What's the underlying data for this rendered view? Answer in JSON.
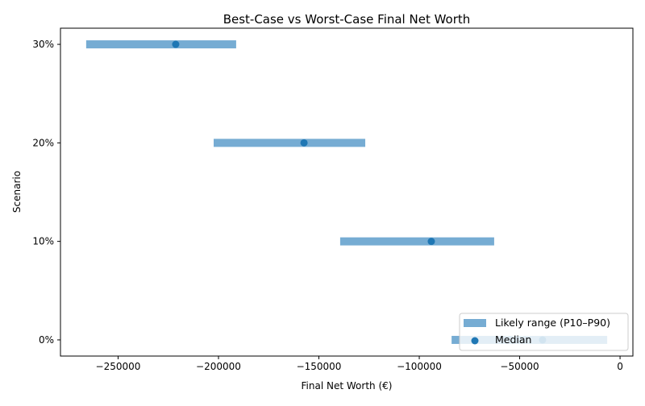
{
  "chart_data": {
    "type": "range-bar",
    "title": "Best-Case vs Worst-Case Final Net Worth",
    "xlabel": "Final Net Worth (€)",
    "ylabel": "Scenario",
    "categories": [
      "0%",
      "10%",
      "20%",
      "30%"
    ],
    "series": [
      {
        "name": "Likely range (P10–P90)",
        "p10": [
          -83900,
          -139400,
          -202400,
          -265900
        ],
        "p90": [
          -6400,
          -62700,
          -126900,
          -191200
        ],
        "color": "#76acd3"
      },
      {
        "name": "Median",
        "values": [
          -38600,
          -94000,
          -157400,
          -221300
        ],
        "color": "#1f77b4"
      }
    ],
    "xlim": [
      -278700,
      6400
    ],
    "xticks": [
      -250000,
      -200000,
      -150000,
      -100000,
      -50000,
      0
    ],
    "xtick_labels": [
      "−250000",
      "−200000",
      "−150000",
      "−100000",
      "−50000",
      "0"
    ],
    "grid": false,
    "legend": "lower-right"
  }
}
